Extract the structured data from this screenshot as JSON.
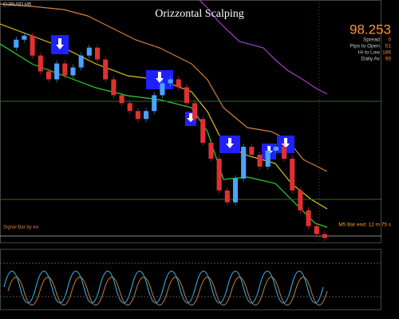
{
  "window": {
    "title": "Orizzontal Scalping",
    "symbol": "EURUSD,M5",
    "signal_text": "Signal Bar by ea"
  },
  "info_panel": {
    "price": "98.253",
    "rows": [
      {
        "label": "Spread",
        "value": "0"
      },
      {
        "label": "Pips to Open",
        "value": "51"
      },
      {
        "label": "Hi to Low",
        "value": "186"
      },
      {
        "label": "Daily Av",
        "value": "95"
      }
    ],
    "bar_end": "M5 Bar end: 12 m 75 s"
  },
  "chart_data": {
    "type": "candlestick",
    "ylim": [
      98.2,
      99.3
    ],
    "closes": [
      99.084,
      99.12,
      99.138,
      99.048,
      98.976,
      98.94,
      99.012,
      98.958,
      98.994,
      99.048,
      99.084,
      99.03,
      98.94,
      98.868,
      98.832,
      98.796,
      98.76,
      98.796,
      98.868,
      98.922,
      98.94,
      98.904,
      98.832,
      98.76,
      98.652,
      98.58,
      98.436,
      98.382,
      98.49,
      98.634,
      98.598,
      98.544,
      98.616,
      98.634,
      98.58,
      98.436,
      98.346,
      98.274,
      98.238,
      98.22
    ],
    "up_color": "#4aa3ff",
    "down_color": "#e03030"
  }
}
